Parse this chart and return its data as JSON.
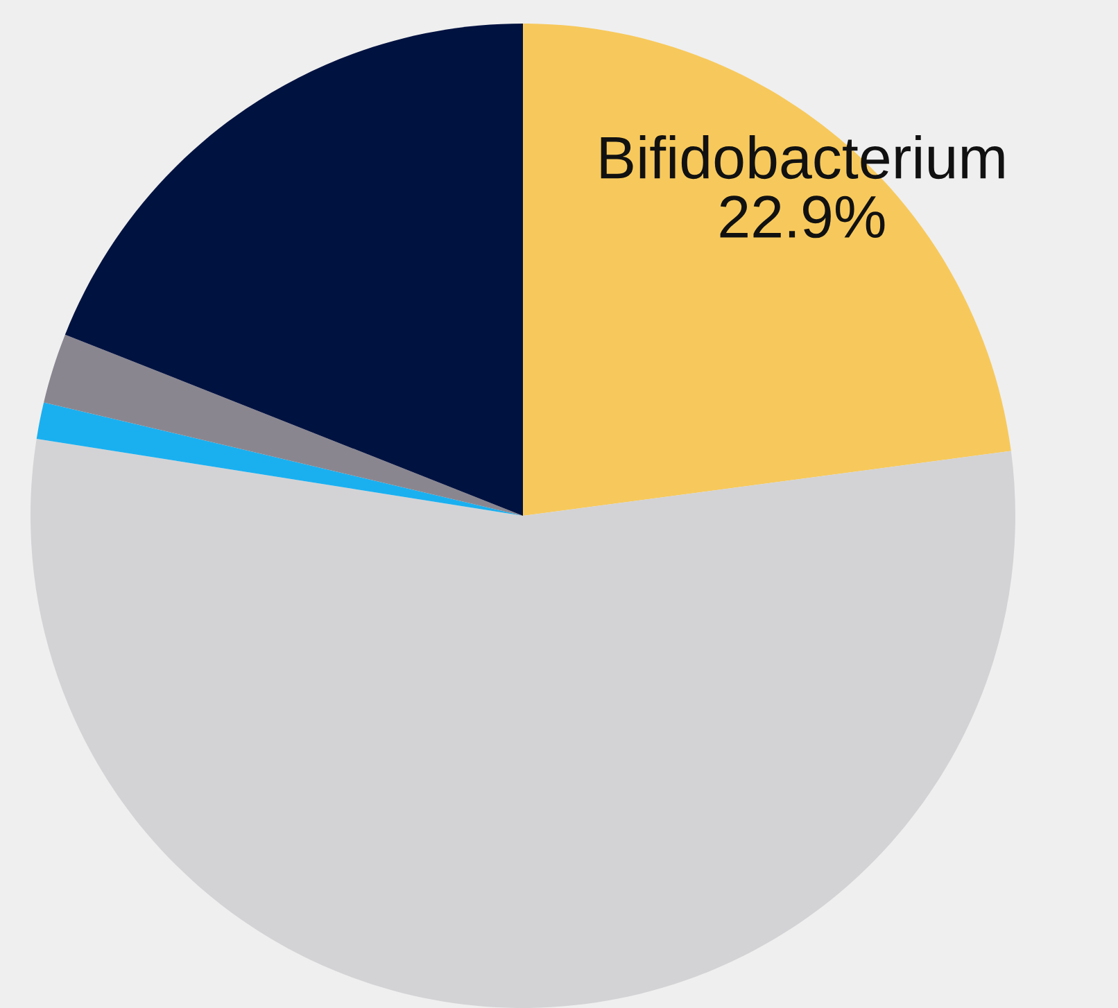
{
  "chart_data": {
    "type": "pie",
    "categories": [
      "Bifidobacterium",
      null,
      null,
      null,
      null
    ],
    "values": [
      22.9,
      54.6,
      1.2,
      2.3,
      19.0
    ],
    "colors": [
      "#f7c95c",
      "#d3d3d6",
      "#1ab0f0",
      "#8a8690",
      "#001240"
    ],
    "value_labels": [
      "22.9%",
      null,
      null,
      null,
      null
    ]
  }
}
